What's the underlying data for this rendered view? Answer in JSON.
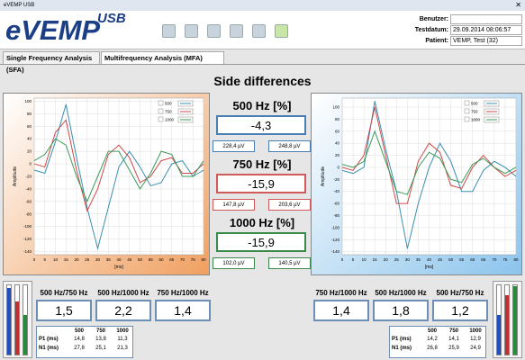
{
  "window_title": "eVEMP USB",
  "logo": {
    "main": "eVEMP",
    "sup": "USB"
  },
  "info": [
    {
      "label": "Benutzer:"
    },
    {
      "label": "Testdatum:",
      "value": "29.09.2014 08:06:57"
    },
    {
      "label": "Patient:",
      "value": "VEMP, Test (32)"
    }
  ],
  "tabs": [
    "Single Frequency Analysis (SFA)",
    "Multifrequency Analysis (MFA)"
  ],
  "title": "Side differences",
  "differences": [
    {
      "label": "500 Hz [%]",
      "value": "-4,3",
      "left": "228,4 µV",
      "right": "248,8 µV",
      "color": "#4a7fb5"
    },
    {
      "label": "750 Hz [%]",
      "value": "-15,9",
      "left": "147,8 µV",
      "right": "203,6 µV",
      "color": "#d05a5a"
    },
    {
      "label": "1000 Hz [%]",
      "value": "-15,9",
      "left": "102,0 µV",
      "right": "140,5 µV",
      "color": "#3a8a4a"
    }
  ],
  "left_chart": {
    "type": "line",
    "ylabel": "Amplitude",
    "xlabel": "[ms]",
    "background": "#f0a060",
    "x": [
      0,
      5,
      10,
      15,
      20,
      25,
      30,
      35,
      40,
      45,
      50,
      55,
      60,
      65,
      70,
      75,
      80
    ],
    "xlim": [
      0,
      80
    ],
    "ylim": [
      -145,
      105
    ],
    "xticks": [
      0,
      5,
      10,
      15,
      20,
      25,
      30,
      35,
      40,
      45,
      50,
      55,
      60,
      65,
      70,
      75,
      80
    ],
    "yticks": [
      100,
      80,
      60,
      40,
      20,
      0,
      -20,
      -40,
      -60,
      -80,
      -100,
      -120,
      -140
    ],
    "grid": true,
    "series": [
      {
        "name": "500",
        "color": "#3a8fb0",
        "values": [
          -10,
          -15,
          35,
          95,
          10,
          -70,
          -135,
          -70,
          -5,
          20,
          -5,
          -35,
          -30,
          0,
          5,
          -20,
          -10
        ]
      },
      {
        "name": "750",
        "color": "#d04848",
        "values": [
          0,
          -5,
          50,
          70,
          -10,
          -75,
          -40,
          15,
          30,
          10,
          -30,
          -20,
          5,
          10,
          -15,
          -15,
          0
        ]
      },
      {
        "name": "1000",
        "color": "#3a9a5a",
        "values": [
          5,
          15,
          40,
          30,
          -20,
          -60,
          -20,
          20,
          20,
          -10,
          -40,
          -15,
          20,
          15,
          -20,
          -20,
          5
        ]
      }
    ]
  },
  "right_chart": {
    "type": "line",
    "ylabel": "Amplitude",
    "xlabel": "[ms]",
    "background": "#8cc4ec",
    "x": [
      0,
      5,
      10,
      15,
      20,
      25,
      30,
      35,
      40,
      45,
      50,
      55,
      60,
      65,
      70,
      75,
      80
    ],
    "xlim": [
      0,
      80
    ],
    "ylim": [
      -145,
      115
    ],
    "xticks": [
      0,
      5,
      10,
      15,
      20,
      25,
      30,
      35,
      40,
      45,
      50,
      55,
      60,
      65,
      70,
      75,
      80
    ],
    "yticks": [
      100,
      80,
      60,
      40,
      20,
      0,
      -20,
      -40,
      -60,
      -80,
      -100,
      -120,
      -140
    ],
    "grid": true,
    "series": [
      {
        "name": "500",
        "color": "#3a8fb0",
        "values": [
          -5,
          -10,
          0,
          110,
          30,
          -40,
          -135,
          -60,
          0,
          40,
          10,
          -40,
          -40,
          -5,
          10,
          0,
          -15
        ]
      },
      {
        "name": "750",
        "color": "#d04848",
        "values": [
          0,
          -5,
          20,
          100,
          20,
          -60,
          -60,
          10,
          40,
          25,
          -30,
          -35,
          0,
          20,
          0,
          -15,
          -5
        ]
      },
      {
        "name": "1000",
        "color": "#3a9a5a",
        "values": [
          5,
          0,
          10,
          60,
          10,
          -40,
          -45,
          0,
          25,
          15,
          -20,
          -25,
          5,
          15,
          0,
          -10,
          0
        ]
      }
    ]
  },
  "left_ratios": [
    {
      "label": "500 Hz/750 Hz",
      "value": "1,5"
    },
    {
      "label": "500 Hz/1000 Hz",
      "value": "2,2"
    },
    {
      "label": "750 Hz/1000 Hz",
      "value": "1,4"
    }
  ],
  "right_ratios": [
    {
      "label": "750 Hz/1000 Hz",
      "value": "1,4"
    },
    {
      "label": "500 Hz/1000 Hz",
      "value": "1,8"
    },
    {
      "label": "500 Hz/750 Hz",
      "value": "1,2"
    }
  ],
  "left_table": {
    "columns": [
      "500",
      "750",
      "1000"
    ],
    "rows": [
      {
        "label": "P1 (ms)",
        "values": [
          "14,8",
          "13,8",
          "11,3"
        ]
      },
      {
        "label": "N1 (ms)",
        "values": [
          "27,8",
          "25,1",
          "21,3"
        ]
      }
    ]
  },
  "right_table": {
    "columns": [
      "500",
      "750",
      "1000"
    ],
    "rows": [
      {
        "label": "P1 (ms)",
        "values": [
          "14,2",
          "14,1",
          "12,9"
        ]
      },
      {
        "label": "N1 (ms)",
        "values": [
          "26,8",
          "25,9",
          "24,9"
        ]
      }
    ]
  }
}
